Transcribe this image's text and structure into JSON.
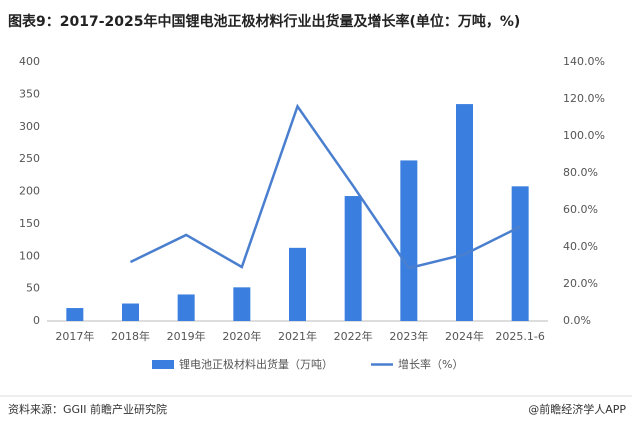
{
  "chart_data": {
    "type": "bar",
    "title": "图表9：2017-2025年中国锂电池正极材料行业出货量及增长率(单位：万吨，%)",
    "categories": [
      "2017年",
      "2018年",
      "2019年",
      "2020年",
      "2021年",
      "2022年",
      "2023年",
      "2024年",
      "2025.1-6"
    ],
    "series": [
      {
        "name": "锂电池正极材料出货量（万吨）",
        "type": "bar",
        "color": "#3a7fe0",
        "values": [
          20,
          27,
          41,
          52,
          113,
          193,
          248,
          335,
          208
        ]
      },
      {
        "name": "增长率（%）",
        "type": "line",
        "axis": "y2",
        "color": "#4a7fcf",
        "values": [
          null,
          31.9,
          46.5,
          29.2,
          116,
          73,
          28.6,
          36,
          51
        ]
      }
    ],
    "ylim": [
      0,
      400
    ],
    "yticks": [
      0,
      50,
      100,
      150,
      200,
      250,
      300,
      350,
      400
    ],
    "y2lim": [
      0,
      140
    ],
    "y2ticks": [
      {
        "value": 0,
        "label": "0.0%"
      },
      {
        "value": 20,
        "label": "20.0%"
      },
      {
        "value": 40,
        "label": "40.0%"
      },
      {
        "value": 60,
        "label": "60.0%"
      },
      {
        "value": 80,
        "label": "80.0%"
      },
      {
        "value": 100,
        "label": "100.0%"
      },
      {
        "value": 120,
        "label": "120.0%"
      },
      {
        "value": 140,
        "label": "140.0%"
      }
    ],
    "grid": false,
    "source": "资料来源：GGII 前瞻产业研究院",
    "credit": "@前瞻经济学人APP"
  }
}
